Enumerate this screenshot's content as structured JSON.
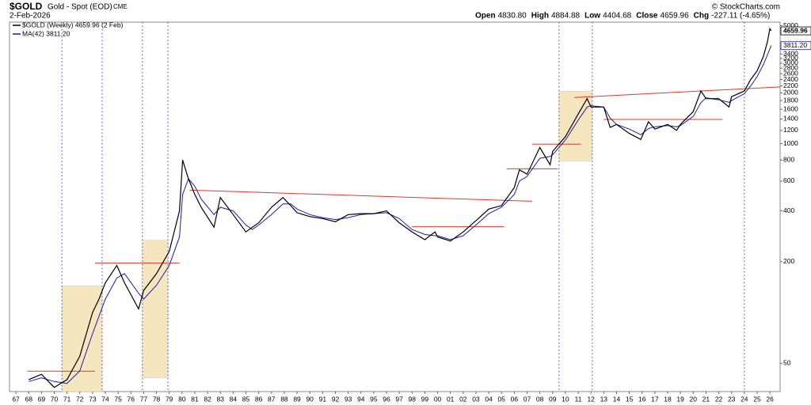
{
  "chart_data": {
    "type": "line",
    "title": "$GOLD",
    "subtitle": "Gold - Spot (EOD)",
    "exchange": "CME",
    "date": "2-Feb-2026",
    "source": "© StockCharts.com",
    "stats": [
      {
        "name": "Open",
        "text": "4830.80"
      },
      {
        "name": "High",
        "text": "4884.88"
      },
      {
        "name": "Low",
        "text": "4404.68"
      },
      {
        "name": "Close",
        "text": "4659.96"
      },
      {
        "name": "Chg",
        "text": "-227.11 (-4.65%)"
      }
    ],
    "log_scale": true,
    "xlim": [
      1966.5,
      2026.8
    ],
    "ylim": [
      34,
      5250
    ],
    "xticks": [
      {
        "value": 1967,
        "label": "67"
      },
      {
        "value": 1968,
        "label": "68"
      },
      {
        "value": 1969,
        "label": "69"
      },
      {
        "value": 1970,
        "label": "70"
      },
      {
        "value": 1971,
        "label": "71"
      },
      {
        "value": 1972,
        "label": "72"
      },
      {
        "value": 1973,
        "label": "73"
      },
      {
        "value": 1974,
        "label": "74"
      },
      {
        "value": 1975,
        "label": "75"
      },
      {
        "value": 1976,
        "label": "76"
      },
      {
        "value": 1977,
        "label": "77"
      },
      {
        "value": 1978,
        "label": "78"
      },
      {
        "value": 1979,
        "label": "79"
      },
      {
        "value": 1980,
        "label": "80"
      },
      {
        "value": 1981,
        "label": "81"
      },
      {
        "value": 1982,
        "label": "82"
      },
      {
        "value": 1983,
        "label": "83"
      },
      {
        "value": 1984,
        "label": "84"
      },
      {
        "value": 1985,
        "label": "85"
      },
      {
        "value": 1986,
        "label": "86"
      },
      {
        "value": 1987,
        "label": "87"
      },
      {
        "value": 1988,
        "label": "88"
      },
      {
        "value": 1989,
        "label": "89"
      },
      {
        "value": 1990,
        "label": "90"
      },
      {
        "value": 1991,
        "label": "91"
      },
      {
        "value": 1992,
        "label": "92"
      },
      {
        "value": 1993,
        "label": "93"
      },
      {
        "value": 1994,
        "label": "94"
      },
      {
        "value": 1995,
        "label": "95"
      },
      {
        "value": 1996,
        "label": "96"
      },
      {
        "value": 1997,
        "label": "97"
      },
      {
        "value": 1998,
        "label": "98"
      },
      {
        "value": 1999,
        "label": "99"
      },
      {
        "value": 2000,
        "label": "00"
      },
      {
        "value": 2001,
        "label": "01"
      },
      {
        "value": 2002,
        "label": "02"
      },
      {
        "value": 2003,
        "label": "03"
      },
      {
        "value": 2004,
        "label": "04"
      },
      {
        "value": 2005,
        "label": "05"
      },
      {
        "value": 2006,
        "label": "06"
      },
      {
        "value": 2007,
        "label": "07"
      },
      {
        "value": 2008,
        "label": "08"
      },
      {
        "value": 2009,
        "label": "09"
      },
      {
        "value": 2010,
        "label": "10"
      },
      {
        "value": 2011,
        "label": "11"
      },
      {
        "value": 2012,
        "label": "12"
      },
      {
        "value": 2013,
        "label": "13"
      },
      {
        "value": 2014,
        "label": "14"
      },
      {
        "value": 2015,
        "label": "15"
      },
      {
        "value": 2016,
        "label": "16"
      },
      {
        "value": 2017,
        "label": "17"
      },
      {
        "value": 2018,
        "label": "18"
      },
      {
        "value": 2019,
        "label": "19"
      },
      {
        "value": 2020,
        "label": "20"
      },
      {
        "value": 2021,
        "label": "21"
      },
      {
        "value": 2022,
        "label": "22"
      },
      {
        "value": 2023,
        "label": "23"
      },
      {
        "value": 2024,
        "label": "24"
      },
      {
        "value": 2025,
        "label": "25"
      },
      {
        "value": 2026,
        "label": "26"
      }
    ],
    "yticks": [
      50,
      200,
      400,
      600,
      800,
      1000,
      1200,
      1400,
      1600,
      1800,
      2000,
      2200,
      2400,
      2600,
      2800,
      3000,
      3200,
      3400,
      5000
    ],
    "x": [
      1968,
      1969,
      1970,
      1971,
      1972,
      1973,
      1973.5,
      1974,
      1974.9,
      1975.5,
      1976.6,
      1977,
      1978,
      1979,
      1979.8,
      1980.05,
      1980.5,
      1981,
      1981.5,
      1982.5,
      1983,
      1984,
      1985,
      1985.5,
      1986,
      1987,
      1987.9,
      1988.5,
      1989,
      1990,
      1991,
      1992,
      1993,
      1994,
      1995,
      1996,
      1997,
      1998,
      1999,
      1999.8,
      2000,
      2001,
      2002,
      2003,
      2004,
      2005,
      2006,
      2006.4,
      2007,
      2008,
      2008.8,
      2009,
      2010,
      2011,
      2011.7,
      2012,
      2013,
      2013.5,
      2014,
      2015,
      2015.9,
      2016.5,
      2017,
      2018,
      2018.7,
      2019,
      2020,
      2020.6,
      2021,
      2022,
      2022.8,
      2023,
      2024,
      2024.5,
      2025,
      2025.5,
      2025.8,
      2026.0,
      2026.1
    ],
    "series": [
      {
        "name": "$GOLD (Weekly) 4659.96 (2 Feb)",
        "color": "#000000",
        "values": [
          40,
          43,
          36,
          40,
          55,
          100,
          120,
          150,
          190,
          150,
          105,
          135,
          170,
          230,
          400,
          800,
          620,
          500,
          420,
          320,
          480,
          380,
          300,
          320,
          340,
          420,
          480,
          430,
          390,
          370,
          360,
          345,
          380,
          385,
          385,
          400,
          340,
          300,
          270,
          300,
          280,
          265,
          300,
          350,
          410,
          430,
          550,
          700,
          660,
          950,
          750,
          900,
          1100,
          1500,
          1850,
          1650,
          1650,
          1250,
          1300,
          1150,
          1060,
          1350,
          1220,
          1300,
          1200,
          1300,
          1550,
          2050,
          1850,
          1850,
          1650,
          1900,
          2050,
          2400,
          2700,
          3300,
          4000,
          4800,
          4659.96
        ]
      },
      {
        "name": "MA(42) 3811.20",
        "color": "#1c1ca8",
        "values": [
          39,
          41,
          39,
          38,
          45,
          75,
          95,
          120,
          160,
          170,
          130,
          120,
          145,
          190,
          280,
          500,
          620,
          560,
          470,
          380,
          420,
          400,
          330,
          310,
          330,
          380,
          440,
          440,
          410,
          380,
          365,
          355,
          365,
          380,
          385,
          390,
          360,
          310,
          290,
          285,
          285,
          270,
          285,
          330,
          385,
          420,
          500,
          600,
          640,
          820,
          840,
          860,
          1050,
          1380,
          1650,
          1680,
          1650,
          1420,
          1300,
          1220,
          1130,
          1230,
          1260,
          1280,
          1260,
          1280,
          1450,
          1750,
          1870,
          1820,
          1760,
          1800,
          1980,
          2200,
          2500,
          2950,
          3350,
          3650,
          3811.2
        ]
      }
    ],
    "price_tags": [
      {
        "value": 4659.96,
        "label": "4659.96"
      },
      {
        "value": 3811.2,
        "label": "3811.20"
      }
    ],
    "shaded_regions": [
      {
        "x": [
          1970.6,
          1973.75
        ],
        "y": [
          34,
          144
        ],
        "color": "#f5e6c0"
      },
      {
        "x": [
          1976.9,
          1978.9
        ],
        "y": [
          41,
          268
        ],
        "color": "#f5e6c0"
      },
      {
        "x": [
          2009.5,
          2012.1
        ],
        "y": [
          790,
          2050
        ],
        "color": "#f5e6c0"
      }
    ],
    "vlines": {
      "x": [
        1970.6,
        1973.75,
        1976.9,
        1978.9,
        2009.5,
        2012.1,
        2024.0
      ],
      "color": "#3344dd"
    },
    "trend_lines": {
      "color": "#e8332a",
      "lines": [
        {
          "x": [
            1967.9,
            1973.2
          ],
          "y": [
            44.9,
            44.9
          ]
        },
        {
          "x": [
            1973.2,
            1979.8
          ],
          "y": [
            196,
            196
          ]
        },
        {
          "x": [
            1980.6,
            2007.4
          ],
          "y": [
            531,
            456
          ]
        },
        {
          "x": [
            1998.0,
            2005.2
          ],
          "y": [
            322,
            322
          ]
        },
        {
          "x": [
            2005.4,
            2009.4
          ],
          "y": [
            710,
            710
          ]
        },
        {
          "x": [
            2007.4,
            2011.2
          ],
          "y": [
            994,
            994
          ]
        },
        {
          "x": [
            2010.7,
            2026.8
          ],
          "y": [
            1877,
            2170
          ]
        },
        {
          "x": [
            2013.0,
            2022.3
          ],
          "y": [
            1392,
            1392
          ]
        }
      ]
    }
  }
}
